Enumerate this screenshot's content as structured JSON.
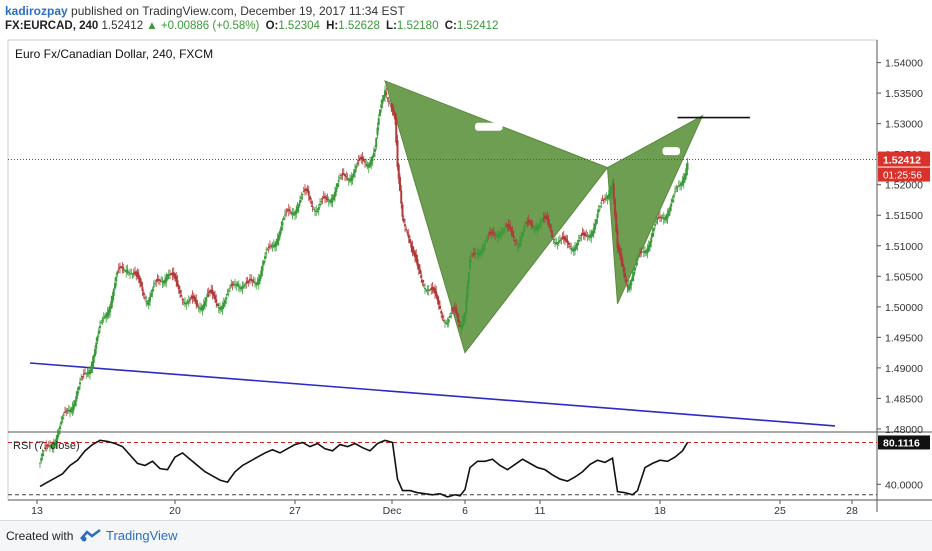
{
  "header": {
    "user": "kadirozpay",
    "published": "published on TradingView.com, December 19, 2017 11:34 EST",
    "symbol": "FX:EURCAD, 240",
    "price": "1.52412",
    "change_arrow": "▲",
    "change": "+0.00886 (+0.58%)",
    "open_label": "O:",
    "open": "1.52304",
    "high_label": "H:",
    "high": "1.52628",
    "low_label": "L:",
    "low": "1.52180",
    "close_label": "C:",
    "close": "1.52412"
  },
  "footer": {
    "created_with": "Created with",
    "brand": "TradingView"
  },
  "colors": {
    "up": "#3a9a3a",
    "down": "#b03a3a",
    "pattern": "#6e9e51",
    "trendline": "#2b2bc8",
    "price_line": "#cc2222",
    "price_tag": "#d9322b"
  },
  "chart_data": [
    {
      "type": "candlestick",
      "title": "Euro Fx/Canadian Dollar, 240, FXCM",
      "y_ticks": [
        "1.54000",
        "1.53500",
        "1.53000",
        "1.52500",
        "1.52000",
        "1.51500",
        "1.51000",
        "1.50500",
        "1.50000",
        "1.49500",
        "1.49000",
        "1.48500",
        "1.48000"
      ],
      "ylim": [
        1.4795,
        1.5437
      ],
      "x_ticks": [
        "13",
        "20",
        "27",
        "Dec",
        "6",
        "11",
        "18",
        "25",
        "28"
      ],
      "last_price": "1.52412",
      "countdown": "01:25:56",
      "close_path": [
        [
          0,
          1.4745
        ],
        [
          8,
          1.4775
        ],
        [
          16,
          1.48
        ],
        [
          22,
          1.483
        ],
        [
          30,
          1.486
        ],
        [
          40,
          1.4905
        ],
        [
          48,
          1.496
        ],
        [
          56,
          1.501
        ],
        [
          62,
          1.505
        ],
        [
          70,
          1.507
        ],
        [
          78,
          1.504
        ],
        [
          86,
          1.5015
        ],
        [
          94,
          1.5035
        ],
        [
          102,
          1.506
        ],
        [
          110,
          1.503
        ],
        [
          118,
          1.501
        ],
        [
          126,
          1.5
        ],
        [
          134,
          1.502
        ],
        [
          142,
          1.5005
        ],
        [
          150,
          1.5015
        ],
        [
          158,
          1.5045
        ],
        [
          166,
          1.503
        ],
        [
          174,
          1.505
        ],
        [
          182,
          1.5085
        ],
        [
          190,
          1.512
        ],
        [
          198,
          1.515
        ],
        [
          206,
          1.517
        ],
        [
          214,
          1.5185
        ],
        [
          222,
          1.516
        ],
        [
          230,
          1.5175
        ],
        [
          238,
          1.52
        ],
        [
          246,
          1.5215
        ],
        [
          254,
          1.523
        ],
        [
          262,
          1.524
        ],
        [
          268,
          1.5255
        ],
        [
          272,
          1.5315
        ],
        [
          276,
          1.536
        ],
        [
          280,
          1.534
        ],
        [
          284,
          1.53
        ],
        [
          286,
          1.522
        ],
        [
          290,
          1.515
        ],
        [
          294,
          1.513
        ],
        [
          298,
          1.5085
        ],
        [
          302,
          1.506
        ],
        [
          308,
          1.504
        ],
        [
          314,
          1.502
        ],
        [
          320,
          1.5
        ],
        [
          326,
          1.4975
        ],
        [
          332,
          1.499
        ],
        [
          336,
          1.4975
        ],
        [
          340,
          1.4995
        ],
        [
          344,
          1.507
        ],
        [
          348,
          1.5085
        ],
        [
          352,
          1.51
        ],
        [
          360,
          1.511
        ],
        [
          368,
          1.513
        ],
        [
          376,
          1.512
        ],
        [
          382,
          1.511
        ],
        [
          390,
          1.513
        ],
        [
          398,
          1.514
        ],
        [
          406,
          1.5135
        ],
        [
          412,
          1.5115
        ],
        [
          420,
          1.51
        ],
        [
          428,
          1.5105
        ],
        [
          436,
          1.511
        ],
        [
          444,
          1.514
        ],
        [
          452,
          1.5175
        ],
        [
          458,
          1.521
        ],
        [
          462,
          1.509
        ],
        [
          466,
          1.506
        ],
        [
          470,
          1.504
        ],
        [
          476,
          1.506
        ],
        [
          482,
          1.509
        ],
        [
          490,
          1.512
        ],
        [
          498,
          1.515
        ],
        [
          506,
          1.517
        ],
        [
          512,
          1.52
        ],
        [
          518,
          1.5241
        ]
      ],
      "lines": [
        {
          "name": "trendline",
          "points": [
            [
              -8,
              1.4908
            ],
            [
              636,
              1.4805
            ]
          ]
        },
        {
          "name": "target-line",
          "points": [
            [
              510,
              1.531
            ],
            [
              568,
              1.531
            ]
          ]
        }
      ],
      "pattern_triangles": [
        {
          "points": [
            [
              276,
              1.537
            ],
            [
              454,
              1.5228
            ],
            [
              340,
              1.4925
            ]
          ]
        },
        {
          "points": [
            [
              454,
              1.5228
            ],
            [
              530,
              1.5313
            ],
            [
              462,
              1.5005
            ]
          ]
        }
      ],
      "pattern_notches": [
        {
          "points": [
            [
              348,
              1.5295
            ],
            [
              370,
              1.5295
            ]
          ]
        },
        {
          "points": [
            [
              498,
              1.5255
            ],
            [
              512,
              1.5255
            ]
          ]
        }
      ]
    },
    {
      "type": "line",
      "title": "RSI (7, close)",
      "value": "80.1116",
      "y_ticks": [
        "40.0000"
      ],
      "ylim": [
        25,
        90
      ],
      "levels": [
        80,
        30
      ],
      "x_ticks": [
        "13",
        "20",
        "27",
        "Dec",
        "6",
        "11",
        "18",
        "25",
        "28"
      ],
      "values": [
        [
          0,
          38
        ],
        [
          6,
          42
        ],
        [
          12,
          46
        ],
        [
          18,
          50
        ],
        [
          24,
          58
        ],
        [
          30,
          63
        ],
        [
          36,
          72
        ],
        [
          42,
          78
        ],
        [
          48,
          82
        ],
        [
          54,
          81
        ],
        [
          60,
          79
        ],
        [
          66,
          76
        ],
        [
          72,
          68
        ],
        [
          78,
          60
        ],
        [
          84,
          58
        ],
        [
          90,
          62
        ],
        [
          96,
          55
        ],
        [
          102,
          54
        ],
        [
          108,
          66
        ],
        [
          114,
          70
        ],
        [
          120,
          64
        ],
        [
          126,
          58
        ],
        [
          132,
          52
        ],
        [
          138,
          48
        ],
        [
          144,
          44
        ],
        [
          150,
          42
        ],
        [
          156,
          52
        ],
        [
          162,
          58
        ],
        [
          168,
          62
        ],
        [
          174,
          66
        ],
        [
          180,
          70
        ],
        [
          186,
          73
        ],
        [
          192,
          70
        ],
        [
          198,
          74
        ],
        [
          204,
          78
        ],
        [
          210,
          80
        ],
        [
          216,
          76
        ],
        [
          222,
          79
        ],
        [
          228,
          74
        ],
        [
          234,
          72
        ],
        [
          240,
          78
        ],
        [
          246,
          76
        ],
        [
          252,
          79
        ],
        [
          258,
          75
        ],
        [
          264,
          72
        ],
        [
          270,
          79
        ],
        [
          276,
          82
        ],
        [
          282,
          80
        ],
        [
          286,
          45
        ],
        [
          290,
          34
        ],
        [
          296,
          34
        ],
        [
          302,
          32
        ],
        [
          308,
          31
        ],
        [
          314,
          30
        ],
        [
          320,
          31
        ],
        [
          326,
          28
        ],
        [
          332,
          30
        ],
        [
          336,
          29
        ],
        [
          340,
          35
        ],
        [
          344,
          56
        ],
        [
          350,
          62
        ],
        [
          356,
          62
        ],
        [
          362,
          64
        ],
        [
          368,
          58
        ],
        [
          374,
          54
        ],
        [
          380,
          59
        ],
        [
          386,
          64
        ],
        [
          392,
          60
        ],
        [
          398,
          56
        ],
        [
          404,
          54
        ],
        [
          410,
          49
        ],
        [
          416,
          45
        ],
        [
          422,
          43
        ],
        [
          428,
          47
        ],
        [
          434,
          52
        ],
        [
          440,
          59
        ],
        [
          446,
          63
        ],
        [
          452,
          61
        ],
        [
          458,
          65
        ],
        [
          462,
          33
        ],
        [
          468,
          32
        ],
        [
          474,
          30
        ],
        [
          478,
          34
        ],
        [
          484,
          56
        ],
        [
          490,
          60
        ],
        [
          496,
          63
        ],
        [
          502,
          62
        ],
        [
          508,
          66
        ],
        [
          514,
          72
        ],
        [
          518,
          80
        ]
      ]
    }
  ]
}
